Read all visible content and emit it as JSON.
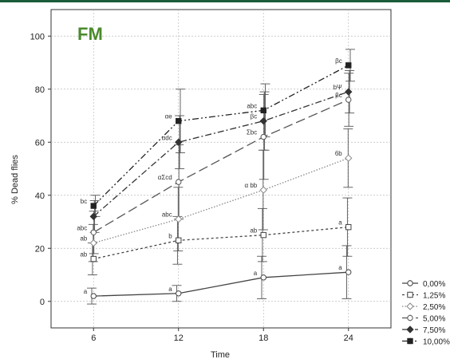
{
  "chart_data": {
    "type": "line",
    "title": "FM",
    "xlabel": "Time",
    "ylabel": "% Dead flies",
    "x": [
      6,
      12,
      18,
      24
    ],
    "xticks": [
      "6",
      "12",
      "18",
      "24"
    ],
    "ylim": [
      -10,
      110
    ],
    "yticks": [
      0,
      20,
      40,
      60,
      80,
      100
    ],
    "grid": true,
    "legend_position": "right-bottom",
    "colors": {
      "title": "#4a8a2c",
      "frame": "#1a5c3a",
      "grid": "#bbbbbb"
    },
    "series": [
      {
        "name": "0,00%",
        "values": [
          2,
          3,
          9,
          11
        ],
        "err": [
          3,
          3,
          8,
          10
        ],
        "line_style": "solid",
        "marker": "open-circle",
        "color": "#444444",
        "labels": [
          "a",
          "a",
          "a",
          "a"
        ]
      },
      {
        "name": "1,25%",
        "values": [
          16,
          23,
          25,
          28
        ],
        "err": [
          6,
          9,
          10,
          11
        ],
        "line_style": "short-dash",
        "marker": "open-square",
        "color": "#444444",
        "labels": [
          "ab",
          "b",
          "ab",
          "a"
        ]
      },
      {
        "name": "2,50%",
        "values": [
          22,
          31,
          42,
          54
        ],
        "err": [
          7,
          12,
          15,
          11
        ],
        "line_style": "dotted",
        "marker": "open-diamond",
        "color": "#888888",
        "labels": [
          "ab",
          "abc",
          "α bb",
          "6b"
        ]
      },
      {
        "name": "5,00%",
        "values": [
          26,
          45,
          62,
          76
        ],
        "err": [
          8,
          14,
          16,
          10
        ],
        "line_style": "long-dash",
        "marker": "open-circle",
        "color": "#555555",
        "labels": [
          "abc",
          "αΣcd",
          "Σbc",
          "βc"
        ]
      },
      {
        "name": "7,50%",
        "values": [
          32,
          60,
          68,
          79
        ],
        "err": [
          6,
          10,
          11,
          8
        ],
        "line_style": "dash-dot",
        "marker": "filled-diamond",
        "color": "#333333",
        "labels": [
          "",
          "αdc",
          "βc",
          "bΨ"
        ]
      },
      {
        "name": "10,00%",
        "values": [
          36,
          68,
          72,
          89
        ],
        "err": [
          4,
          12,
          10,
          6
        ],
        "line_style": "dash-dot-dot",
        "marker": "filled-square",
        "color": "#222222",
        "labels": [
          "bc",
          "αe",
          "abc",
          "βc"
        ]
      }
    ]
  }
}
